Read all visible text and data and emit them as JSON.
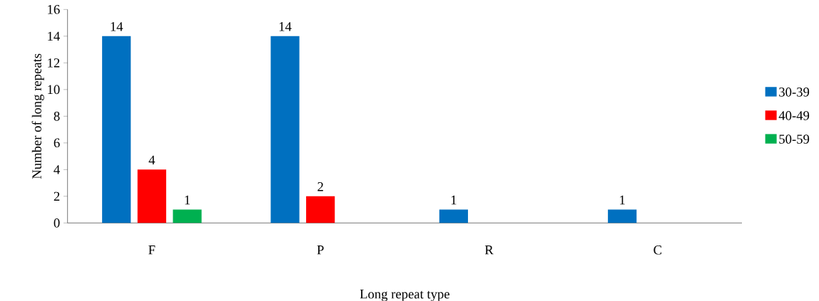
{
  "chart_data": {
    "type": "bar",
    "xlabel": "Long repeat type",
    "ylabel": "Number of long repeats",
    "categories": [
      "F",
      "P",
      "R",
      "C"
    ],
    "series": [
      {
        "name": "30-39",
        "color": "#0070c0",
        "values": [
          14,
          14,
          1,
          1
        ]
      },
      {
        "name": "40-49",
        "color": "#ff0000",
        "values": [
          4,
          2,
          null,
          null
        ]
      },
      {
        "name": "50-59",
        "color": "#00b050",
        "values": [
          1,
          null,
          null,
          null
        ]
      }
    ],
    "ylim": [
      0,
      16
    ],
    "yticks": [
      0,
      2,
      4,
      6,
      8,
      10,
      12,
      14,
      16
    ],
    "grid": false,
    "legend": "right",
    "data_labels": true
  }
}
